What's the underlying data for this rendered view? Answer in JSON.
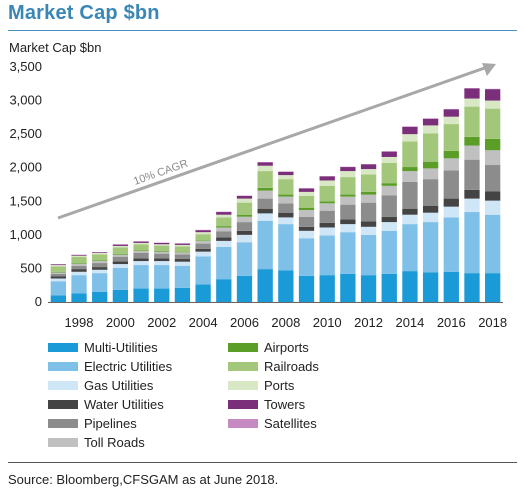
{
  "page_title": "Market Cap $bn",
  "source_text": "Source: Bloomberg,CFSGAM as at June 2018.",
  "chart_data": {
    "type": "bar",
    "stacked": true,
    "ylabel": "Market Cap $bn",
    "ylim": [
      0,
      3500
    ],
    "yticks": [
      "0",
      "500",
      "1,000",
      "1,500",
      "2,000",
      "2,500",
      "3,000",
      "3,500"
    ],
    "ytick_values": [
      0,
      500,
      1000,
      1500,
      2000,
      2500,
      3000,
      3500
    ],
    "categories": [
      "1997",
      "1998",
      "1999",
      "2000",
      "2001",
      "2002",
      "2003",
      "2004",
      "2005",
      "2006",
      "2007",
      "2008",
      "2009",
      "2010",
      "2011",
      "2012",
      "2013",
      "2014",
      "2015",
      "2016",
      "2017",
      "2018"
    ],
    "x_tick_labels": [
      "",
      "1998",
      "",
      "2000",
      "",
      "2002",
      "",
      "2004",
      "",
      "2006",
      "",
      "2008",
      "",
      "2010",
      "",
      "2012",
      "",
      "2014",
      "",
      "2016",
      "",
      "2018"
    ],
    "annotation": "10% CAGR",
    "legend_placement": "bottom",
    "series": [
      {
        "name": "Multi-Utilities",
        "color": "#1a9ad6",
        "values": [
          100,
          130,
          150,
          180,
          200,
          200,
          210,
          260,
          340,
          390,
          490,
          470,
          390,
          400,
          420,
          400,
          420,
          460,
          440,
          450,
          430,
          430
        ]
      },
      {
        "name": "Electric Utilities",
        "color": "#7ec0e8",
        "values": [
          210,
          270,
          280,
          330,
          350,
          350,
          330,
          420,
          480,
          500,
          720,
          690,
          560,
          590,
          620,
          600,
          640,
          700,
          750,
          810,
          910,
          870
        ]
      },
      {
        "name": "Gas Utilities",
        "color": "#cfe6f6",
        "values": [
          40,
          50,
          50,
          55,
          60,
          60,
          60,
          70,
          90,
          110,
          110,
          100,
          110,
          120,
          120,
          120,
          130,
          140,
          140,
          160,
          200,
          210
        ]
      },
      {
        "name": "Water Utilities",
        "color": "#444444",
        "values": [
          30,
          40,
          40,
          40,
          40,
          40,
          40,
          40,
          50,
          60,
          70,
          70,
          60,
          70,
          70,
          80,
          80,
          90,
          100,
          120,
          130,
          140
        ]
      },
      {
        "name": "Pipelines",
        "color": "#8c8c8c",
        "values": [
          40,
          50,
          60,
          70,
          80,
          70,
          70,
          80,
          90,
          130,
          150,
          140,
          150,
          180,
          220,
          280,
          320,
          400,
          400,
          420,
          450,
          390
        ]
      },
      {
        "name": "Toll Roads",
        "color": "#c0c0c0",
        "values": [
          20,
          30,
          30,
          30,
          30,
          30,
          30,
          40,
          60,
          80,
          120,
          100,
          100,
          110,
          120,
          120,
          140,
          160,
          160,
          180,
          210,
          220
        ]
      },
      {
        "name": "Airports",
        "color": "#5a9e28",
        "values": [
          10,
          10,
          10,
          10,
          10,
          10,
          10,
          10,
          20,
          30,
          40,
          30,
          30,
          30,
          30,
          40,
          40,
          60,
          100,
          110,
          130,
          170
        ]
      },
      {
        "name": "Railroads",
        "color": "#a3c77a",
        "values": [
          80,
          90,
          90,
          100,
          90,
          80,
          80,
          90,
          130,
          180,
          250,
          230,
          180,
          230,
          260,
          260,
          300,
          380,
          420,
          400,
          450,
          450
        ]
      },
      {
        "name": "Ports",
        "color": "#d8e8c4",
        "values": [
          20,
          20,
          20,
          20,
          20,
          20,
          20,
          30,
          40,
          60,
          80,
          60,
          60,
          80,
          90,
          80,
          90,
          110,
          120,
          110,
          120,
          120
        ]
      },
      {
        "name": "Towers",
        "color": "#7b2f7a",
        "values": [
          10,
          10,
          10,
          20,
          20,
          20,
          20,
          30,
          40,
          40,
          50,
          50,
          50,
          60,
          60,
          70,
          80,
          110,
          100,
          110,
          150,
          170
        ]
      },
      {
        "name": "Satellites",
        "color": "#c58ac2",
        "values": [
          5,
          5,
          5,
          5,
          5,
          5,
          5,
          5,
          5,
          5,
          5,
          5,
          5,
          5,
          5,
          5,
          5,
          5,
          5,
          5,
          5,
          5
        ]
      }
    ]
  }
}
